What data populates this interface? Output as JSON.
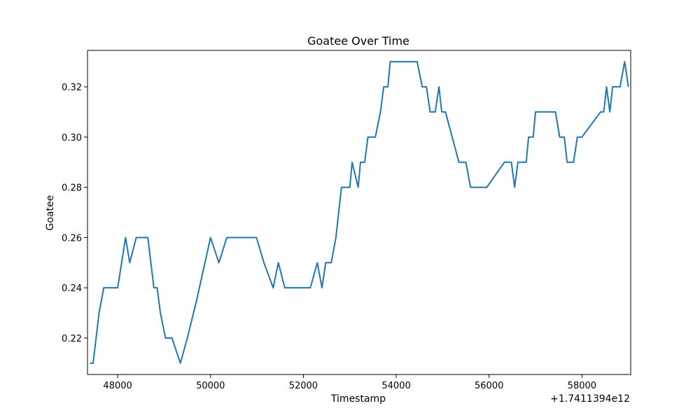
{
  "chart_data": {
    "type": "line",
    "title": "Goatee Over Time",
    "xlabel": "Timestamp",
    "ylabel": "Goatee",
    "x_offset_label": "+1.7411394e12",
    "xlim": [
      47350,
      59050
    ],
    "ylim": [
      0.2055,
      0.3345
    ],
    "x_ticks": [
      48000,
      50000,
      52000,
      54000,
      56000,
      58000
    ],
    "x_tick_labels": [
      "48000",
      "50000",
      "52000",
      "54000",
      "56000",
      "58000"
    ],
    "y_ticks": [
      0.22,
      0.24,
      0.26,
      0.28,
      0.3,
      0.32
    ],
    "y_tick_labels": [
      "0.22",
      "0.24",
      "0.26",
      "0.28",
      "0.30",
      "0.32"
    ],
    "grid": false,
    "series": [
      {
        "color": "#1f77b4",
        "points": [
          [
            47400,
            0.21
          ],
          [
            47470,
            0.21
          ],
          [
            47600,
            0.23
          ],
          [
            47700,
            0.24
          ],
          [
            47800,
            0.24
          ],
          [
            48000,
            0.24
          ],
          [
            48170,
            0.26
          ],
          [
            48260,
            0.25
          ],
          [
            48400,
            0.26
          ],
          [
            48500,
            0.26
          ],
          [
            48650,
            0.26
          ],
          [
            48780,
            0.24
          ],
          [
            48850,
            0.24
          ],
          [
            48920,
            0.23
          ],
          [
            49030,
            0.22
          ],
          [
            49170,
            0.22
          ],
          [
            49350,
            0.21
          ],
          [
            49500,
            0.22
          ],
          [
            49700,
            0.235
          ],
          [
            49820,
            0.245
          ],
          [
            50000,
            0.26
          ],
          [
            50180,
            0.25
          ],
          [
            50350,
            0.26
          ],
          [
            50500,
            0.26
          ],
          [
            50700,
            0.26
          ],
          [
            50990,
            0.26
          ],
          [
            51150,
            0.25
          ],
          [
            51350,
            0.24
          ],
          [
            51460,
            0.25
          ],
          [
            51600,
            0.24
          ],
          [
            52150,
            0.24
          ],
          [
            52300,
            0.25
          ],
          [
            52400,
            0.24
          ],
          [
            52480,
            0.25
          ],
          [
            52600,
            0.25
          ],
          [
            52700,
            0.26
          ],
          [
            52820,
            0.28
          ],
          [
            52900,
            0.28
          ],
          [
            53000,
            0.28
          ],
          [
            53050,
            0.29
          ],
          [
            53180,
            0.28
          ],
          [
            53230,
            0.29
          ],
          [
            53320,
            0.29
          ],
          [
            53390,
            0.3
          ],
          [
            53550,
            0.3
          ],
          [
            53660,
            0.31
          ],
          [
            53730,
            0.32
          ],
          [
            53820,
            0.32
          ],
          [
            53870,
            0.33
          ],
          [
            54000,
            0.33
          ],
          [
            54450,
            0.33
          ],
          [
            54560,
            0.32
          ],
          [
            54650,
            0.32
          ],
          [
            54730,
            0.31
          ],
          [
            54840,
            0.31
          ],
          [
            54920,
            0.32
          ],
          [
            54980,
            0.31
          ],
          [
            55060,
            0.31
          ],
          [
            55350,
            0.29
          ],
          [
            55500,
            0.29
          ],
          [
            55600,
            0.28
          ],
          [
            55750,
            0.28
          ],
          [
            55950,
            0.28
          ],
          [
            56330,
            0.29
          ],
          [
            56480,
            0.29
          ],
          [
            56550,
            0.28
          ],
          [
            56620,
            0.29
          ],
          [
            56800,
            0.29
          ],
          [
            56850,
            0.3
          ],
          [
            56950,
            0.3
          ],
          [
            57000,
            0.31
          ],
          [
            57430,
            0.31
          ],
          [
            57520,
            0.3
          ],
          [
            57620,
            0.3
          ],
          [
            57680,
            0.29
          ],
          [
            57820,
            0.29
          ],
          [
            57900,
            0.3
          ],
          [
            58000,
            0.3
          ],
          [
            58400,
            0.31
          ],
          [
            58470,
            0.31
          ],
          [
            58530,
            0.32
          ],
          [
            58600,
            0.31
          ],
          [
            58660,
            0.32
          ],
          [
            58820,
            0.32
          ],
          [
            58920,
            0.33
          ],
          [
            59000,
            0.32
          ]
        ]
      }
    ]
  }
}
